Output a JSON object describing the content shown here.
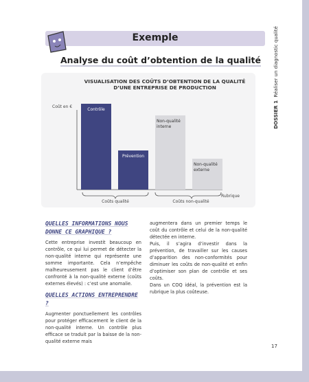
{
  "header": {
    "banner": "Exemple",
    "subtitle": "Analyse du coût d’obtention de la qualité"
  },
  "sidebar": {
    "dossier": "DOSSIER 1",
    "title": "Réaliser un diagnostic qualité"
  },
  "chart_data": {
    "type": "bar",
    "title": "VISUALISATION DES COÛTS D’OBTENTION DE LA QUALITÉ D’UNE ENTREPRISE DE PRODUCTION",
    "y_label": "Coût en €",
    "x_label": "Rubrique",
    "categories": [
      "Contrôle",
      "Prévention",
      "Non-qualité interne",
      "Non-qualité externe"
    ],
    "values": [
      125,
      57,
      108,
      45
    ],
    "colors": [
      "#3f4581",
      "#3f4581",
      "#d9d9dd",
      "#d9d9dd"
    ],
    "label_colors": [
      "#ffffff",
      "#ffffff",
      "#333333",
      "#333333"
    ],
    "ylim": [
      0,
      130
    ],
    "groups": [
      "Coûts qualité",
      "Coûts non-qualité"
    ]
  },
  "left_column": {
    "heading_1": "Quelles informations nous donne ce graphique ?",
    "paragraph_1": "Cette entreprise investit beaucoup en contrôle, ce qui lui permet de détecter la non-qualité interne qui représente une somme importante. Cela n’empêche malheureusement pas le client d’être confronté à la non-qualité externe (coûts externes élevés) : c’est une anomalie.",
    "heading_2": "Quelles actions entreprendre ?",
    "paragraph_2": "Augmenter ponctuellement les contrôles pour protéger efficacement le client de la non-qualité interne. Un contrôle plus efficace se traduit par la baisse de la non-qualité externe mais"
  },
  "right_column": {
    "paragraph_1": "augmentera dans un premier temps le coût du contrôle et celui de la non-qualité détectée en interne.",
    "paragraph_2": "Puis, il s’agira d’investir dans la prévention, de travailler sur les causes d’apparition des non-conformités pour diminuer les coûts de non-qualité et enfin d’optimiser son plan de contrôle et ses coûts.",
    "paragraph_3": "Dans un COQ idéal, la prévention est la rubrique la plus coûteuse."
  },
  "page_number": "17"
}
